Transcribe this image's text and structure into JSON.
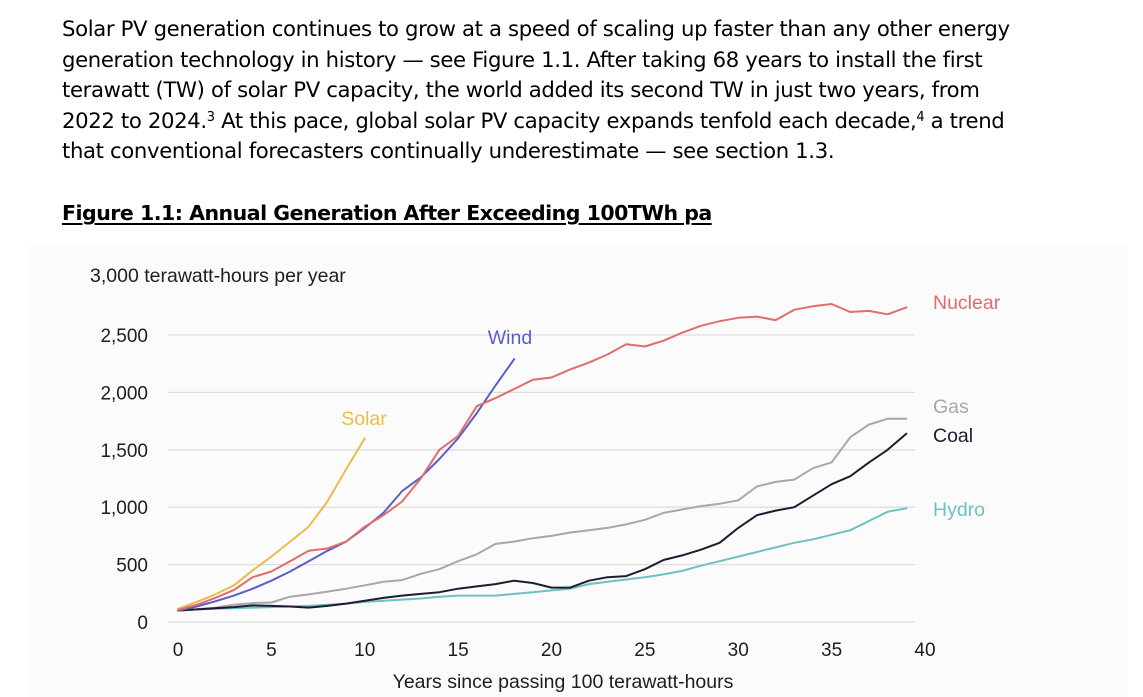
{
  "document": {
    "paragraph_lines": [
      "Solar PV generation continues to grow at a speed of scaling up faster than any other energy",
      "generation technology in history — see Figure 1.1. After taking 68 years to install the first",
      "terawatt (TW) of solar PV capacity, the world added its second TW in just two years, from",
      "2022 to 2024.",
      " At this pace, global solar PV capacity expands tenfold each decade,",
      " a trend",
      "that conventional forecasters continually underestimate — see section 1.3."
    ],
    "footnotes": [
      "3",
      "4"
    ],
    "figure_title": "Figure 1.1: Annual Generation After Exceeding 100TWh pa"
  },
  "chart_data": {
    "type": "line",
    "title": "Figure 1.1: Annual Generation After Exceeding 100TWh pa",
    "ylabel": "3,000 terawatt-hours per year",
    "xlabel": "Years since passing 100 terawatt-hours",
    "xlim": [
      0,
      40
    ],
    "ylim": [
      0,
      3000
    ],
    "xticks": [
      "0",
      "5",
      "10",
      "15",
      "20",
      "25",
      "30",
      "35",
      "40"
    ],
    "yticks": [
      "0",
      "500",
      "1,000",
      "1,500",
      "2,000",
      "2,500"
    ],
    "grid": true,
    "legend": "inline labels at line ends",
    "series": [
      {
        "name": "Nuclear",
        "color": "#e06c6c",
        "x": [
          0,
          1,
          2,
          3,
          4,
          5,
          6,
          7,
          8,
          9,
          10,
          11,
          12,
          13,
          14,
          15,
          16,
          17,
          18,
          19,
          20,
          21,
          22,
          23,
          24,
          25,
          26,
          27,
          28,
          29,
          30,
          31,
          32,
          33,
          34,
          35,
          36,
          37,
          38,
          39
        ],
        "y": [
          105,
          150,
          210,
          280,
          390,
          440,
          530,
          620,
          640,
          700,
          830,
          930,
          1050,
          1250,
          1500,
          1620,
          1880,
          1950,
          2030,
          2110,
          2130,
          2200,
          2260,
          2330,
          2420,
          2400,
          2450,
          2520,
          2580,
          2620,
          2650,
          2660,
          2630,
          2720,
          2750,
          2770,
          2700,
          2710,
          2680,
          2740
        ]
      },
      {
        "name": "Wind",
        "color": "#5a5fc8",
        "x": [
          0,
          1,
          2,
          3,
          4,
          5,
          6,
          7,
          8,
          9,
          10,
          11,
          12,
          13,
          14,
          15,
          16,
          17,
          18
        ],
        "y": [
          100,
          135,
          180,
          230,
          290,
          360,
          440,
          530,
          620,
          700,
          820,
          950,
          1140,
          1260,
          1420,
          1600,
          1820,
          2060,
          2290
        ]
      },
      {
        "name": "Solar",
        "color": "#e8bd4a",
        "x": [
          0,
          1,
          2,
          3,
          4,
          5,
          6,
          7,
          8,
          9,
          10
        ],
        "y": [
          115,
          175,
          240,
          320,
          450,
          570,
          700,
          830,
          1050,
          1330,
          1600
        ]
      },
      {
        "name": "Gas",
        "color": "#a8a8a8",
        "x": [
          0,
          1,
          2,
          3,
          4,
          5,
          6,
          7,
          8,
          9,
          10,
          11,
          12,
          13,
          14,
          15,
          16,
          17,
          18,
          19,
          20,
          21,
          22,
          23,
          24,
          25,
          26,
          27,
          28,
          29,
          30,
          31,
          32,
          33,
          34,
          35,
          36,
          37,
          38,
          39
        ],
        "y": [
          100,
          110,
          125,
          150,
          165,
          170,
          220,
          240,
          265,
          290,
          320,
          350,
          365,
          420,
          460,
          530,
          590,
          680,
          700,
          730,
          750,
          780,
          800,
          820,
          850,
          890,
          950,
          980,
          1010,
          1030,
          1060,
          1180,
          1220,
          1240,
          1340,
          1390,
          1610,
          1720,
          1770,
          1770
        ]
      },
      {
        "name": "Coal",
        "color": "#1c1c30",
        "x": [
          0,
          1,
          2,
          3,
          4,
          5,
          6,
          7,
          8,
          9,
          10,
          11,
          12,
          13,
          14,
          15,
          16,
          17,
          18,
          19,
          20,
          21,
          22,
          23,
          24,
          25,
          26,
          27,
          28,
          29,
          30,
          31,
          32,
          33,
          34,
          35,
          36,
          37,
          38,
          39
        ],
        "y": [
          100,
          110,
          120,
          130,
          145,
          140,
          135,
          125,
          140,
          160,
          185,
          210,
          230,
          245,
          260,
          290,
          310,
          330,
          360,
          340,
          300,
          300,
          360,
          390,
          400,
          460,
          540,
          580,
          630,
          690,
          820,
          930,
          970,
          1000,
          1100,
          1200,
          1270,
          1390,
          1500,
          1640
        ]
      },
      {
        "name": "Hydro",
        "color": "#6cc2c3",
        "x": [
          0,
          1,
          2,
          3,
          4,
          5,
          6,
          7,
          8,
          9,
          10,
          11,
          12,
          13,
          14,
          15,
          16,
          17,
          18,
          19,
          20,
          21,
          22,
          23,
          24,
          25,
          26,
          27,
          28,
          29,
          30,
          31,
          32,
          33,
          34,
          35,
          36,
          37,
          38,
          39
        ],
        "y": [
          100,
          110,
          115,
          120,
          125,
          130,
          135,
          140,
          150,
          160,
          175,
          185,
          195,
          205,
          220,
          230,
          230,
          230,
          245,
          260,
          275,
          290,
          330,
          350,
          370,
          390,
          415,
          445,
          490,
          530,
          570,
          610,
          650,
          690,
          720,
          760,
          800,
          880,
          960,
          990
        ]
      }
    ]
  }
}
